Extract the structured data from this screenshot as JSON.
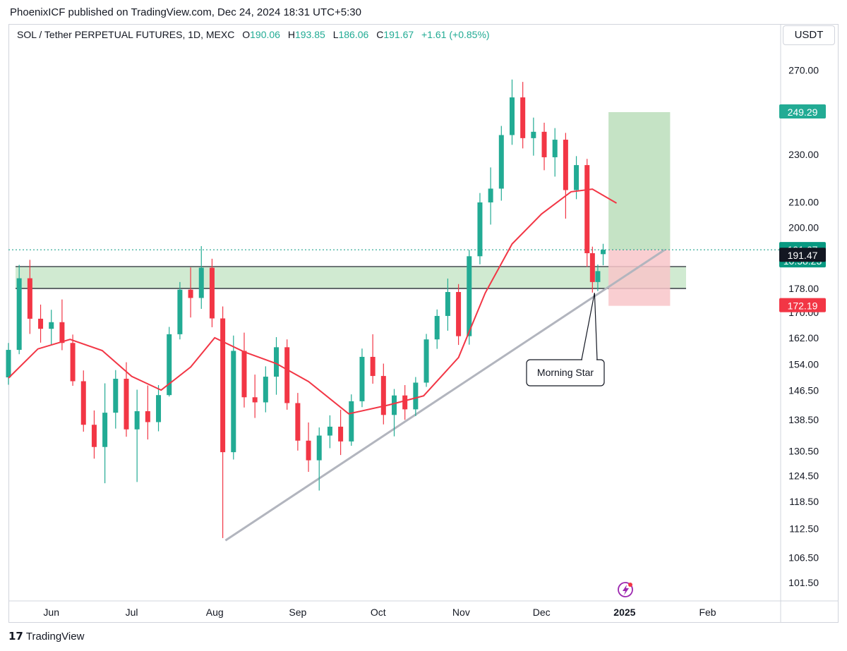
{
  "header": {
    "publisher": "PhoenixICF published on TradingView.com, Dec 24, 2024 18:31 UTC+5:30"
  },
  "legend": {
    "symbol": "SOL / Tether PERPETUAL FUTURES, 1D, MEXC",
    "open_label": "O",
    "open": "190.06",
    "high_label": "H",
    "high": "193.85",
    "low_label": "L",
    "low": "186.06",
    "close_label": "C",
    "close": "191.67",
    "change": "+1.61 (+0.85%)"
  },
  "currency_button": "USDT",
  "footer": {
    "brand": "TradingView",
    "logo": "tradingview-logo-icon"
  },
  "colors": {
    "up": "#22ab94",
    "down": "#f23645",
    "ma": "#f23645",
    "support_zone": "#c8e6c9",
    "profit_zone": "#bfe0bf",
    "loss_zone": "#f8c5c9",
    "trendline": "#b2b5be",
    "price_label": "#089981",
    "target_label": "#22ab94",
    "stop_label": "#f23645"
  },
  "chart_data": {
    "type": "candlestick",
    "scale": "log",
    "ylim": [
      98,
      295
    ],
    "y_ticks": [
      "270.00",
      "230.00",
      "210.00",
      "200.00",
      "178.00",
      "170.00",
      "162.00",
      "154.00",
      "146.50",
      "138.50",
      "130.50",
      "124.50",
      "118.50",
      "112.50",
      "106.50",
      "101.50"
    ],
    "x_ticks": [
      "Jun",
      "Jul",
      "Aug",
      "Sep",
      "Oct",
      "Nov",
      "Dec",
      "2025",
      "Feb"
    ],
    "ohlc": [
      [
        "2024-05-16",
        150.2,
        160.4,
        148.1,
        158.3
      ],
      [
        "2024-05-20",
        158.3,
        186.2,
        157.0,
        181.5
      ],
      [
        "2024-05-24",
        181.5,
        188.0,
        163.2,
        168.0
      ],
      [
        "2024-05-28",
        168.0,
        172.6,
        160.5,
        164.8
      ],
      [
        "2024-06-01",
        164.8,
        170.9,
        159.8,
        166.9
      ],
      [
        "2024-06-05",
        166.9,
        174.3,
        158.2,
        160.4
      ],
      [
        "2024-06-09",
        160.4,
        163.0,
        147.8,
        149.1
      ],
      [
        "2024-06-13",
        149.1,
        152.2,
        135.4,
        137.2
      ],
      [
        "2024-06-17",
        137.2,
        141.0,
        128.6,
        131.5
      ],
      [
        "2024-06-21",
        131.5,
        148.5,
        122.7,
        140.4
      ],
      [
        "2024-06-25",
        140.4,
        152.3,
        136.2,
        149.8
      ],
      [
        "2024-06-29",
        149.8,
        154.6,
        134.1,
        136.0
      ],
      [
        "2024-07-03",
        136.0,
        146.7,
        123.0,
        140.8
      ],
      [
        "2024-07-07",
        140.8,
        147.9,
        133.4,
        137.9
      ],
      [
        "2024-07-11",
        137.9,
        148.0,
        135.5,
        145.2
      ],
      [
        "2024-07-15",
        145.2,
        165.4,
        144.8,
        163.1
      ],
      [
        "2024-07-19",
        163.1,
        180.2,
        161.5,
        177.6
      ],
      [
        "2024-07-23",
        177.6,
        185.3,
        168.4,
        174.8
      ],
      [
        "2024-07-27",
        174.8,
        193.0,
        171.2,
        185.2
      ],
      [
        "2024-07-31",
        185.2,
        188.4,
        165.3,
        168.1
      ],
      [
        "2024-08-04",
        168.1,
        172.0,
        110.5,
        130.2
      ],
      [
        "2024-08-08",
        130.2,
        162.7,
        128.4,
        158.0
      ],
      [
        "2024-08-12",
        158.0,
        163.6,
        141.8,
        144.6
      ],
      [
        "2024-08-16",
        144.6,
        151.0,
        139.0,
        143.2
      ],
      [
        "2024-08-20",
        143.2,
        153.4,
        140.5,
        150.4
      ],
      [
        "2024-08-24",
        150.4,
        162.2,
        145.3,
        159.1
      ],
      [
        "2024-08-28",
        159.1,
        161.5,
        141.2,
        143.0
      ],
      [
        "2024-09-01",
        143.0,
        145.8,
        130.6,
        133.1
      ],
      [
        "2024-09-05",
        133.1,
        137.8,
        125.4,
        128.2
      ],
      [
        "2024-09-09",
        128.2,
        136.5,
        121.0,
        134.4
      ],
      [
        "2024-09-13",
        134.4,
        139.7,
        131.2,
        136.7
      ],
      [
        "2024-09-17",
        136.7,
        141.2,
        129.5,
        132.9
      ],
      [
        "2024-09-21",
        132.9,
        145.4,
        131.8,
        143.5
      ],
      [
        "2024-09-25",
        143.5,
        158.7,
        141.9,
        156.2
      ],
      [
        "2024-09-29",
        156.2,
        163.1,
        148.4,
        150.6
      ],
      [
        "2024-10-03",
        150.6,
        154.2,
        137.3,
        139.8
      ],
      [
        "2024-10-07",
        139.8,
        146.9,
        134.2,
        145.1
      ],
      [
        "2024-10-11",
        145.1,
        148.0,
        138.5,
        141.3
      ],
      [
        "2024-10-15",
        141.3,
        150.3,
        139.5,
        148.7
      ],
      [
        "2024-10-19",
        148.7,
        163.2,
        147.5,
        161.5
      ],
      [
        "2024-10-23",
        161.5,
        171.0,
        158.6,
        168.9
      ],
      [
        "2024-10-27",
        168.9,
        181.4,
        164.2,
        176.8
      ],
      [
        "2024-10-31",
        176.8,
        179.5,
        159.8,
        162.5
      ],
      [
        "2024-11-04",
        162.5,
        191.6,
        159.9,
        189.3
      ],
      [
        "2024-11-08",
        189.3,
        213.6,
        186.4,
        209.8
      ],
      [
        "2024-11-12",
        209.8,
        224.3,
        201.1,
        215.4
      ],
      [
        "2024-11-16",
        215.4,
        242.8,
        210.5,
        238.6
      ],
      [
        "2024-11-20",
        238.6,
        265.3,
        234.2,
        256.4
      ],
      [
        "2024-11-24",
        256.4,
        264.1,
        232.6,
        237.2
      ],
      [
        "2024-11-28",
        237.2,
        246.7,
        229.4,
        240.1
      ],
      [
        "2024-12-02",
        240.1,
        244.3,
        223.1,
        228.7
      ],
      [
        "2024-12-06",
        228.7,
        241.8,
        220.4,
        236.5
      ],
      [
        "2024-12-10",
        236.5,
        239.6,
        203.4,
        214.8
      ],
      [
        "2024-12-14",
        214.8,
        229.2,
        211.1,
        225.3
      ],
      [
        "2024-12-18",
        225.3,
        228.0,
        185.5,
        190.4
      ],
      [
        "2024-12-20",
        190.4,
        192.8,
        176.6,
        180.2
      ],
      [
        "2024-12-22",
        180.2,
        186.3,
        177.1,
        184.0
      ],
      [
        "2024-12-24",
        190.06,
        193.85,
        186.06,
        191.67
      ]
    ],
    "moving_average": [
      [
        "2024-05-16",
        150.0
      ],
      [
        "2024-05-27",
        158.6
      ],
      [
        "2024-06-08",
        161.5
      ],
      [
        "2024-06-20",
        158.1
      ],
      [
        "2024-07-01",
        150.5
      ],
      [
        "2024-07-12",
        146.6
      ],
      [
        "2024-07-23",
        153.2
      ],
      [
        "2024-08-01",
        162.0
      ],
      [
        "2024-08-12",
        157.7
      ],
      [
        "2024-08-24",
        154.2
      ],
      [
        "2024-09-05",
        149.0
      ],
      [
        "2024-09-20",
        140.1
      ],
      [
        "2024-10-05",
        142.5
      ],
      [
        "2024-10-18",
        145.0
      ],
      [
        "2024-10-31",
        156.0
      ],
      [
        "2024-11-10",
        176.5
      ],
      [
        "2024-11-20",
        193.8
      ],
      [
        "2024-12-01",
        205.2
      ],
      [
        "2024-12-12",
        214.1
      ],
      [
        "2024-12-20",
        215.2
      ],
      [
        "2024-12-29",
        209.5
      ]
    ],
    "support_zone": [
      178.0,
      185.6
    ],
    "trendline": [
      [
        "2024-08-05",
        110.0
      ],
      [
        "2025-01-16",
        191.67
      ]
    ],
    "long_position": {
      "entry": 191.67,
      "target": 249.29,
      "stop": 172.19
    },
    "price_labels": {
      "last": "191.67",
      "countdown": "10:58:23",
      "crosshair": "191.47",
      "target": "249.29",
      "stop": "172.19"
    },
    "annotations": [
      {
        "text": "Morning Star",
        "points_to": "2024-12-20"
      }
    ]
  }
}
